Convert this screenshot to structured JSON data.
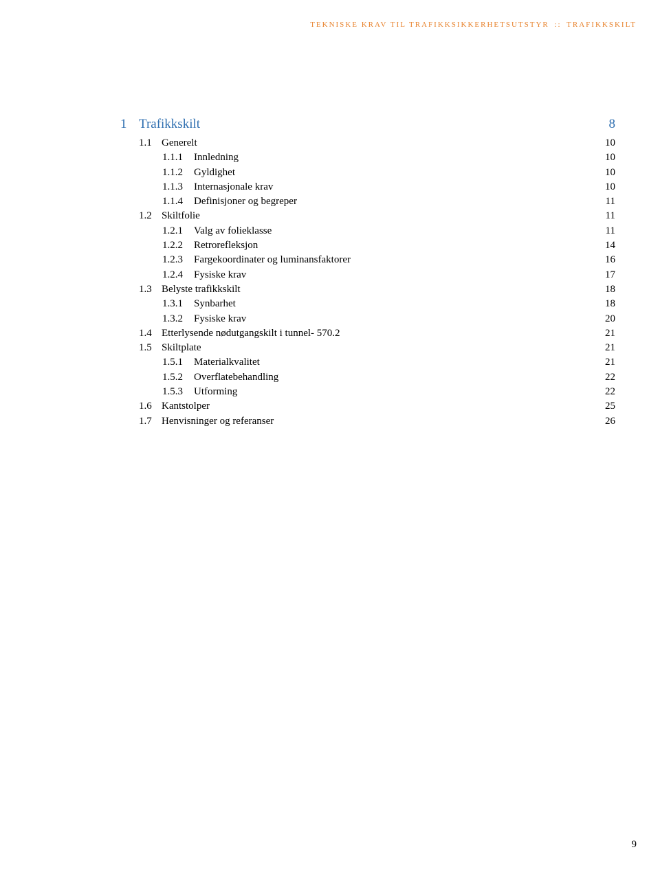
{
  "header": {
    "left": "TEKNISKE KRAV TIL TRAFIKKSIKKERHETSUTSTYR",
    "separator": "::",
    "right": "TRAFIKKSKILT"
  },
  "toc": {
    "chapter": {
      "num": "1",
      "title": "Trafikkskilt",
      "page": "8"
    },
    "entries": [
      {
        "level": 1,
        "num": "1.1",
        "title": "Generelt",
        "page": "10"
      },
      {
        "level": 2,
        "num": "1.1.1",
        "title": "Innledning",
        "page": "10"
      },
      {
        "level": 2,
        "num": "1.1.2",
        "title": "Gyldighet",
        "page": "10"
      },
      {
        "level": 2,
        "num": "1.1.3",
        "title": "Internasjonale krav",
        "page": "10"
      },
      {
        "level": 2,
        "num": "1.1.4",
        "title": "Definisjoner og begreper",
        "page": "11"
      },
      {
        "level": 1,
        "num": "1.2",
        "title": "Skiltfolie",
        "page": "11"
      },
      {
        "level": 2,
        "num": "1.2.1",
        "title": "Valg av folieklasse",
        "page": "11"
      },
      {
        "level": 2,
        "num": "1.2.2",
        "title": "Retrorefleksjon",
        "page": "14"
      },
      {
        "level": 2,
        "num": "1.2.3",
        "title": "Fargekoordinater og luminansfaktorer",
        "page": "16"
      },
      {
        "level": 2,
        "num": "1.2.4",
        "title": "Fysiske krav",
        "page": "17"
      },
      {
        "level": 1,
        "num": "1.3",
        "title": "Belyste trafikkskilt",
        "page": "18"
      },
      {
        "level": 2,
        "num": "1.3.1",
        "title": "Synbarhet",
        "page": "18"
      },
      {
        "level": 2,
        "num": "1.3.2",
        "title": "Fysiske krav",
        "page": "20"
      },
      {
        "level": 1,
        "num": "1.4",
        "title": "Etterlysende nødutgangskilt i tunnel- 570.2",
        "page": "21"
      },
      {
        "level": 1,
        "num": "1.5",
        "title": "Skiltplate",
        "page": "21"
      },
      {
        "level": 2,
        "num": "1.5.1",
        "title": "Materialkvalitet",
        "page": "21"
      },
      {
        "level": 2,
        "num": "1.5.2",
        "title": "Overflatebehandling",
        "page": "22"
      },
      {
        "level": 2,
        "num": "1.5.3",
        "title": "Utforming",
        "page": "22"
      },
      {
        "level": 1,
        "num": "1.6",
        "title": "Kantstolper",
        "page": "25"
      },
      {
        "level": 1,
        "num": "1.7",
        "title": "Henvisninger og referanser",
        "page": "26"
      }
    ]
  },
  "page_number": "9",
  "colors": {
    "header_orange": "#e8832e",
    "chapter_blue": "#2f6fb0",
    "text_black": "#000000",
    "background": "#ffffff"
  }
}
